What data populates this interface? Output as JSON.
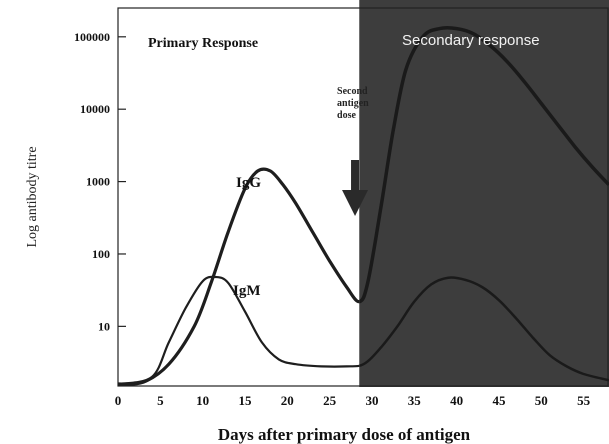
{
  "chart_data": {
    "type": "line",
    "title": "",
    "xlabel": "Days after primary dose of antigen",
    "ylabel": "Log  antibody titre",
    "y_scale": "log",
    "xlim": [
      0,
      58
    ],
    "ylim": [
      1.5,
      250000
    ],
    "x_ticks": [
      0,
      5,
      10,
      15,
      20,
      25,
      30,
      35,
      40,
      45,
      50,
      55
    ],
    "x_tick_labels": [
      "0",
      "5",
      "10",
      "15",
      "20",
      "25",
      "30",
      "35",
      "40",
      "45",
      "50",
      "55"
    ],
    "y_ticks": [
      10,
      100,
      1000,
      10000,
      100000
    ],
    "y_tick_labels": [
      "10",
      "100",
      "1000",
      "10000",
      "100000"
    ],
    "regions": [
      {
        "label": "Primary Response",
        "x_range": [
          0,
          28.5
        ],
        "shaded": false
      },
      {
        "label": "Secondary response",
        "x_range": [
          28.5,
          58
        ],
        "shaded": true,
        "color": "#3d3d3d"
      }
    ],
    "annotation": {
      "label_lines": [
        "Second",
        "antigen",
        "dose"
      ],
      "arrow_x": 28
    },
    "series": [
      {
        "name": "IgG",
        "x": [
          0,
          3,
          6,
          9,
          11,
          13,
          15,
          16.5,
          18,
          19.5,
          21,
          23,
          25,
          27,
          28.5,
          29.5,
          31,
          32.5,
          34,
          36,
          38,
          40,
          42,
          44,
          46,
          48,
          50,
          52,
          54,
          56,
          58
        ],
        "y": [
          1.6,
          1.7,
          3,
          10,
          40,
          200,
          800,
          1400,
          1400,
          900,
          500,
          200,
          80,
          35,
          22,
          40,
          400,
          5000,
          35000,
          100000,
          130000,
          130000,
          110000,
          75000,
          45000,
          24000,
          12000,
          6000,
          3000,
          1600,
          900
        ]
      },
      {
        "name": "IgM",
        "x": [
          0,
          4,
          6,
          8,
          10,
          11.5,
          13,
          15,
          17,
          19,
          21,
          24,
          27,
          29,
          31,
          33,
          35,
          37,
          39,
          41,
          43,
          45,
          47,
          49,
          51,
          53,
          55,
          58
        ],
        "y": [
          1.6,
          2,
          6,
          18,
          42,
          48,
          40,
          16,
          6,
          3.5,
          3,
          2.8,
          2.8,
          3,
          5,
          10,
          22,
          38,
          47,
          44,
          35,
          23,
          13,
          7,
          4,
          2.8,
          2.2,
          1.8
        ]
      }
    ]
  }
}
